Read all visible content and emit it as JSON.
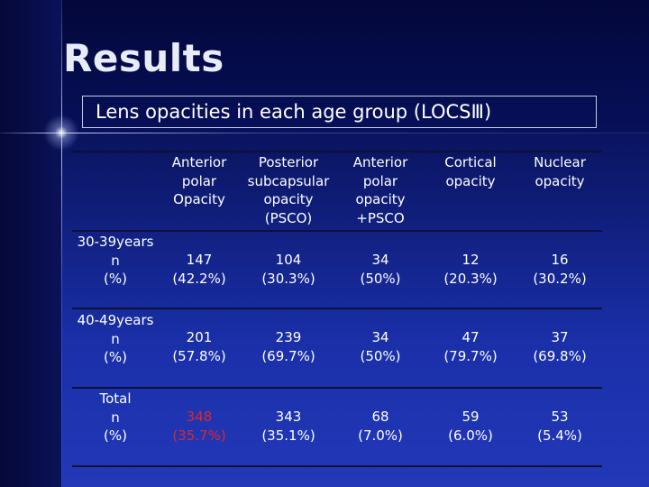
{
  "slide": {
    "title": "Results",
    "subtitle": "Lens opacities in each age group (LOCSⅢ)"
  },
  "table": {
    "columns": [
      "Anterior\npolar\nOpacity",
      "Posterior\nsubcapsular\nopacity\n(PSCO)",
      "Anterior\npolar\nopacity\n+PSCO",
      "Cortical\nopacity",
      "Nuclear\nopacity"
    ],
    "rows": [
      {
        "label": "30-39years\nn\n(%)",
        "cells": [
          "147\n(42.2%)",
          "104\n(30.3%)",
          "34\n(50%)",
          "12\n(20.3%)",
          "16\n(30.2%)"
        ]
      },
      {
        "label": "40-49years\nn\n(%)",
        "cells": [
          "201\n(57.8%)",
          "239\n(69.7%)",
          "34\n(50%)",
          "47\n(79.7%)",
          "37\n(69.8%)"
        ]
      },
      {
        "label": "Total\nn\n(%)",
        "cells": [
          "348\n(35.7%)",
          "343\n(35.1%)",
          "68\n(7.0%)",
          "59\n(6.0%)",
          "53\n(5.4%)"
        ]
      }
    ],
    "highlight_color": "#e02828"
  }
}
